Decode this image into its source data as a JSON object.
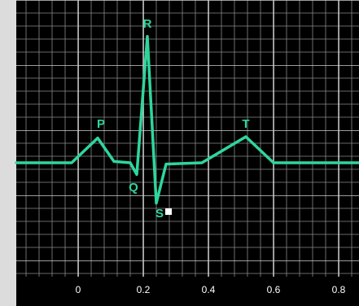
{
  "chart_data": {
    "type": "line",
    "annotations": [
      "P",
      "Q",
      "R",
      "S",
      "T"
    ],
    "x": [
      -0.19,
      -0.02,
      0.06,
      0.11,
      0.16,
      0.18,
      0.2125,
      0.24,
      0.27,
      0.38,
      0.515,
      0.6,
      0.8625
    ],
    "series": [
      {
        "color": "#2fd69c",
        "values": [
          0,
          0,
          1.9,
          0.1,
          0,
          -0.9,
          9.7,
          -3.1,
          -0.1,
          0,
          2.0,
          0,
          0
        ]
      }
    ],
    "xlim": [
      -0.19,
      0.8625
    ],
    "ylim": [
      -8.75,
      12.5
    ],
    "xticks": [
      0,
      0.2,
      0.4,
      0.6,
      0.8
    ],
    "grid": true
  }
}
